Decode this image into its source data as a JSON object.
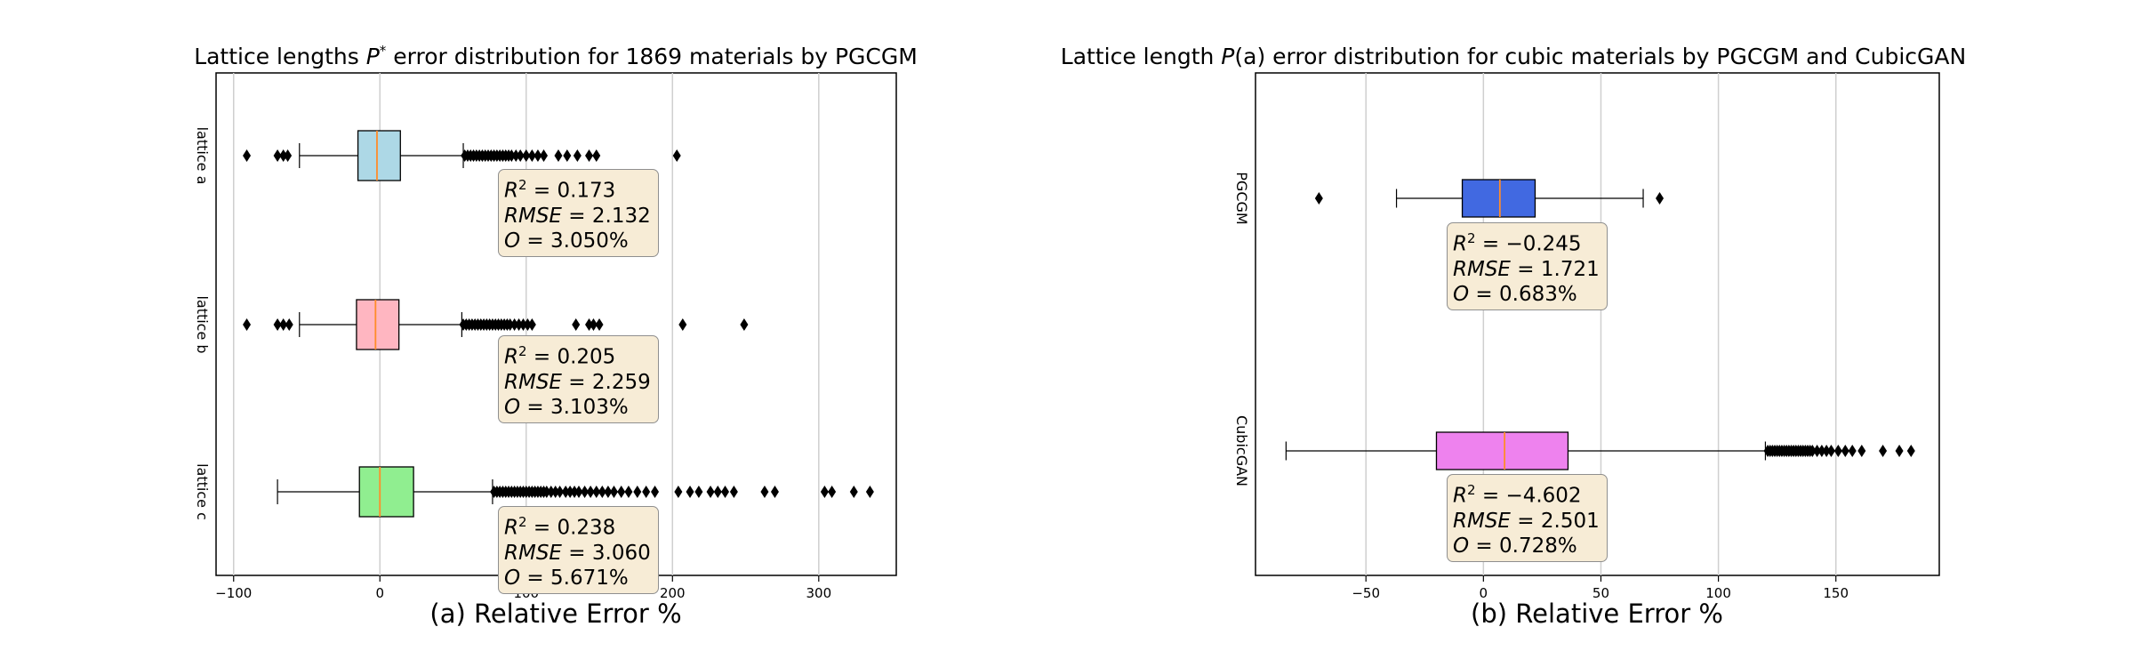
{
  "chart_data": [
    {
      "type": "box",
      "title_prefix": "Lattice lengths ",
      "title_symbol": "P",
      "title_symbol_sup": "*",
      "title_suffix": " error distribution for 1869 materials by PGCGM",
      "xlabel": "(a) Relative Error %",
      "xlim": [
        -112,
        353
      ],
      "xticks": [
        -100,
        0,
        100,
        200,
        300
      ],
      "xtick_labels": [
        "−100",
        "0",
        "100",
        "200",
        "300"
      ],
      "grid": "vertical",
      "series": [
        {
          "name": "lattice a",
          "color": "#add8e6",
          "whisker_low": -55,
          "q1": -15,
          "median": -2,
          "q3": 14,
          "whisker_high": 57,
          "outliers": [
            -91,
            -70,
            -66,
            -63,
            58,
            60,
            62,
            64,
            66,
            68,
            70,
            72,
            74,
            76,
            78,
            80,
            82,
            84,
            86,
            88,
            90,
            93,
            96,
            100,
            104,
            108,
            112,
            122,
            128,
            135,
            143,
            148,
            203
          ],
          "stats": {
            "r2": "0.173",
            "rmse": "2.132",
            "o": "3.050%"
          }
        },
        {
          "name": "lattice b",
          "color": "#ffb6c1",
          "whisker_low": -55,
          "q1": -16,
          "median": -3,
          "q3": 13,
          "whisker_high": 56,
          "outliers": [
            -91,
            -70,
            -66,
            -62,
            57,
            59,
            61,
            63,
            65,
            67,
            69,
            71,
            73,
            75,
            77,
            79,
            81,
            83,
            85,
            87,
            89,
            92,
            95,
            98,
            101,
            104,
            134,
            143,
            146,
            150,
            207,
            249
          ],
          "stats": {
            "r2": "0.205",
            "rmse": "2.259",
            "o": "3.103%"
          }
        },
        {
          "name": "lattice c",
          "color": "#90ee90",
          "whisker_low": -70,
          "q1": -14,
          "median": 0,
          "q3": 23,
          "whisker_high": 77,
          "outliers": [
            78,
            80,
            82,
            84,
            86,
            88,
            90,
            92,
            94,
            96,
            98,
            100,
            102,
            104,
            106,
            108,
            110,
            112,
            114,
            117,
            120,
            123,
            127,
            130,
            133,
            136,
            140,
            144,
            148,
            152,
            156,
            160,
            165,
            170,
            176,
            182,
            188,
            204,
            212,
            218,
            226,
            231,
            236,
            242,
            263,
            270,
            304,
            309,
            324,
            335
          ],
          "stats": {
            "r2": "0.238",
            "rmse": "3.060",
            "o": "5.671%"
          }
        }
      ]
    },
    {
      "type": "box",
      "title_prefix": "Lattice length ",
      "title_symbol": "P",
      "title_symbol_arg": "(a)",
      "title_suffix": " error distribution for cubic materials by PGCGM and CubicGAN",
      "xlabel": "(b) Relative Error %",
      "xlim": [
        -97,
        194
      ],
      "xticks": [
        -50,
        0,
        50,
        100,
        150
      ],
      "xtick_labels": [
        "−50",
        "0",
        "50",
        "100",
        "150"
      ],
      "grid": "vertical",
      "series": [
        {
          "name": "PGCGM",
          "color": "#4169e1",
          "whisker_low": -37,
          "q1": -9,
          "median": 7,
          "q3": 22,
          "whisker_high": 68,
          "outliers": [
            -70,
            75
          ],
          "stats": {
            "r2": "−0.245",
            "rmse": "1.721",
            "o": "0.683%"
          }
        },
        {
          "name": "CubicGAN",
          "color": "#ee82ee",
          "whisker_low": -84,
          "q1": -20,
          "median": 9,
          "q3": 36,
          "whisker_high": 120,
          "outliers": [
            121,
            122,
            123,
            124,
            125,
            126,
            127,
            128,
            129,
            130,
            131,
            132,
            133,
            134,
            135,
            136,
            137,
            138,
            139,
            140,
            142,
            144,
            146,
            148,
            151,
            154,
            157,
            161,
            170,
            177,
            182
          ],
          "stats": {
            "r2": "−4.602",
            "rmse": "2.501",
            "o": "0.728%"
          }
        }
      ]
    }
  ]
}
